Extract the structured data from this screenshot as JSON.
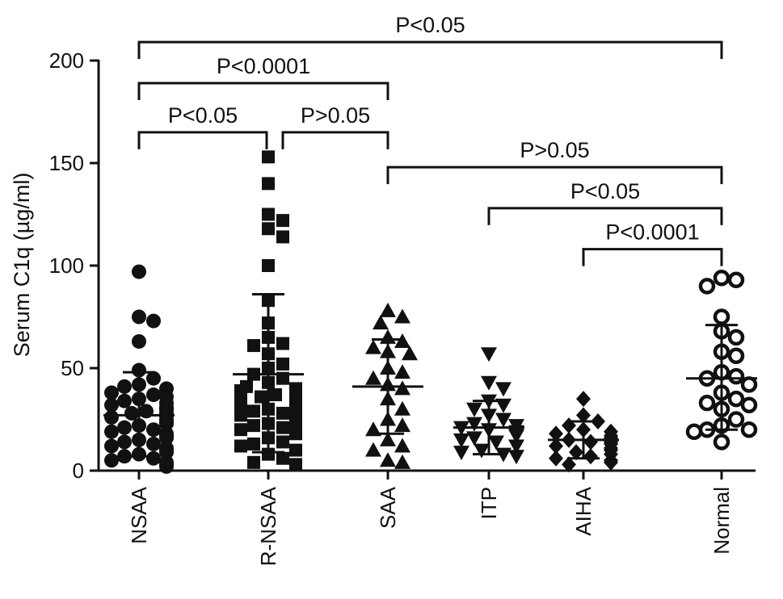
{
  "chart_data": {
    "type": "scatter",
    "title": "",
    "xlabel": "",
    "ylabel": "Serum C1q (µg/ml)",
    "ylim": [
      0,
      200
    ],
    "yticks": [
      0,
      50,
      100,
      150,
      200
    ],
    "grid": false,
    "legend": "none",
    "colors": {
      "ink": "#111111"
    },
    "categories": [
      "NSAA",
      "R-NSAA",
      "SAA",
      "ITP",
      "AIHA",
      "Normal"
    ],
    "series": [
      {
        "category": "NSAA",
        "marker": "circle",
        "mean": 27,
        "sd_low": 7,
        "sd_high": 48,
        "values": [
          97,
          75,
          73,
          63,
          49,
          45,
          42,
          41,
          40,
          38,
          37,
          36,
          35,
          34,
          33,
          32,
          31,
          30,
          30,
          29,
          28,
          28,
          27,
          27,
          26,
          25,
          24,
          23,
          23,
          22,
          21,
          20,
          19,
          18,
          17,
          16,
          15,
          14,
          13,
          12,
          11,
          10,
          9,
          8,
          7,
          6,
          5,
          4,
          3,
          2
        ]
      },
      {
        "category": "R-NSAA",
        "marker": "square",
        "mean": 47,
        "sd_low": 9,
        "sd_high": 86,
        "values": [
          153,
          140,
          125,
          122,
          118,
          114,
          100,
          83,
          72,
          65,
          62,
          61,
          57,
          52,
          50,
          47,
          45,
          43,
          41,
          40,
          39,
          38,
          37,
          36,
          35,
          34,
          33,
          32,
          31,
          30,
          29,
          28,
          27,
          26,
          25,
          24,
          23,
          22,
          21,
          20,
          19,
          18,
          16,
          14,
          13,
          12,
          10,
          8,
          6,
          4,
          3
        ]
      },
      {
        "category": "SAA",
        "marker": "triangle-up",
        "mean": 41,
        "sd_low": 18,
        "sd_high": 64,
        "values": [
          78,
          75,
          72,
          65,
          63,
          60,
          58,
          57,
          50,
          48,
          45,
          42,
          40,
          35,
          30,
          25,
          22,
          20,
          15,
          12,
          10,
          5,
          4
        ]
      },
      {
        "category": "ITP",
        "marker": "triangle-down",
        "mean": 21,
        "sd_low": 8,
        "sd_high": 34,
        "values": [
          57,
          43,
          40,
          34,
          32,
          30,
          27,
          25,
          23,
          22,
          21,
          20,
          19,
          18,
          17,
          16,
          15,
          14,
          12,
          10,
          9,
          8,
          7
        ]
      },
      {
        "category": "AIHA",
        "marker": "diamond",
        "mean": 15,
        "sd_low": 6,
        "sd_high": 24,
        "values": [
          35,
          27,
          24,
          22,
          20,
          19,
          18,
          17,
          16,
          15,
          14,
          14,
          13,
          12,
          11,
          10,
          9,
          8,
          7,
          6,
          5,
          4,
          3
        ]
      },
      {
        "category": "Normal",
        "marker": "open-circle",
        "mean": 45,
        "sd_low": 20,
        "sd_high": 71,
        "values": [
          94,
          93,
          90,
          75,
          68,
          65,
          58,
          56,
          48,
          46,
          45,
          42,
          38,
          35,
          33,
          32,
          30,
          25,
          22,
          20,
          20,
          19,
          14
        ]
      }
    ],
    "annotations": [
      {
        "label": "P<0.05",
        "from": "NSAA",
        "to": "Normal",
        "y": 209
      },
      {
        "label": "P<0.0001",
        "from": "NSAA",
        "to": "SAA",
        "y": 189
      },
      {
        "label": "P<0.05",
        "from": "NSAA",
        "to": "R-NSAA",
        "y": 165
      },
      {
        "label": "P>0.05",
        "from": "R-NSAA",
        "to": "SAA",
        "y": 165
      },
      {
        "label": "P>0.05",
        "from": "SAA",
        "to": "Normal",
        "y": 148
      },
      {
        "label": "P<0.05",
        "from": "ITP",
        "to": "Normal",
        "y": 128
      },
      {
        "label": "P<0.0001",
        "from": "AIHA",
        "to": "Normal",
        "y": 108
      }
    ]
  }
}
